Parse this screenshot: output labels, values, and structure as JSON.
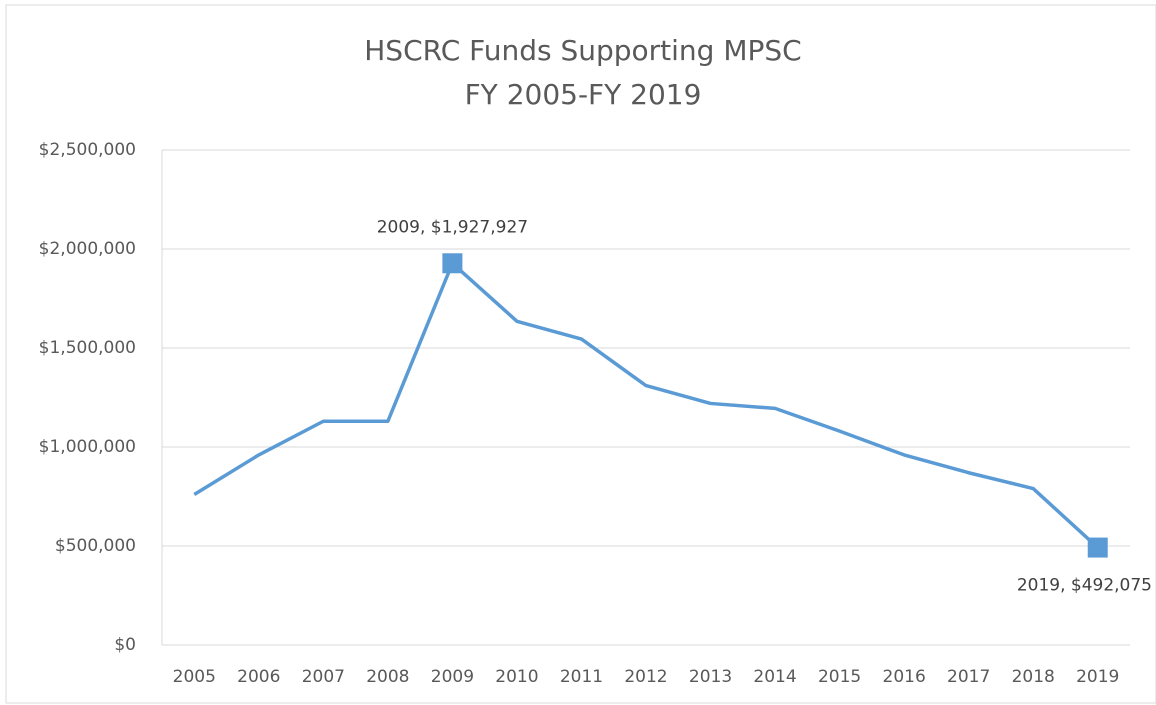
{
  "chart_data": {
    "type": "line",
    "title": "HSCRC Funds Supporting MPSC",
    "subtitle": "FY 2005-FY 2019",
    "categories": [
      "2005",
      "2006",
      "2007",
      "2008",
      "2009",
      "2010",
      "2011",
      "2012",
      "2013",
      "2014",
      "2015",
      "2016",
      "2017",
      "2018",
      "2019"
    ],
    "series": [
      {
        "name": "HSCRC Funds",
        "color": "#5b9bd5",
        "values": [
          760000,
          960000,
          1130000,
          1130000,
          1927927,
          1635000,
          1545000,
          1310000,
          1220000,
          1195000,
          1080000,
          960000,
          870000,
          790000,
          492075
        ],
        "value_labels": [
          null,
          null,
          null,
          null,
          "2009, $1,927,927",
          null,
          null,
          null,
          null,
          null,
          null,
          null,
          null,
          null,
          "2019, $492,075"
        ]
      }
    ],
    "ylim": [
      0,
      2500000
    ],
    "yticks": [
      {
        "value": 0,
        "label": "$0"
      },
      {
        "value": 500000,
        "label": "$500,000"
      },
      {
        "value": 1000000,
        "label": "$1,000,000"
      },
      {
        "value": 1500000,
        "label": "$1,500,000"
      },
      {
        "value": 2000000,
        "label": "$2,000,000"
      },
      {
        "value": 2500000,
        "label": "$2,500,000"
      }
    ],
    "grid": true
  }
}
